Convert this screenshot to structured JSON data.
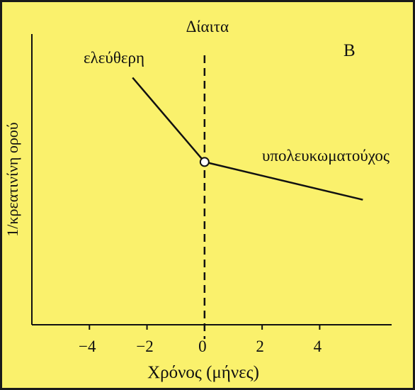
{
  "chart_data": {
    "type": "line",
    "panel_label": "B",
    "xlabel": "Χρόνος  (μήνες)",
    "ylabel": "1/κρεατινίνη ορού",
    "xlim": [
      -6,
      6.5
    ],
    "ylim": [
      0,
      10
    ],
    "xticks": [
      -4,
      -2,
      0,
      2,
      4
    ],
    "xtick_labels": [
      "−4",
      "−2",
      "0",
      "2",
      "4"
    ],
    "grid": false,
    "vertical_line": {
      "x": 0,
      "style": "dashed",
      "label": "Δίαιτα"
    },
    "series": [
      {
        "name": "ελεύθερη",
        "x": [
          -2.5,
          0
        ],
        "y": [
          8.5,
          5.6
        ]
      },
      {
        "name": "υπολευκωματούχος",
        "x": [
          0,
          5.5
        ],
        "y": [
          5.6,
          4.3
        ]
      }
    ],
    "marker": {
      "x": 0,
      "y": 5.6,
      "shape": "open-circle"
    }
  },
  "colors": {
    "background": "#faf16c",
    "ink": "#111111",
    "border": "#1a1a1a"
  }
}
